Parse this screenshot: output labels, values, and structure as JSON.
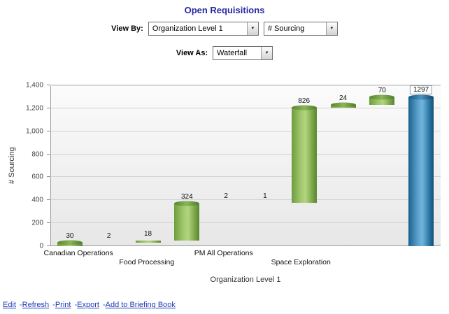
{
  "page": {
    "title": "Open Requisitions"
  },
  "controls": {
    "view_by_label": "View By:",
    "view_by_options": [
      "Organization Level 1"
    ],
    "metric_options": [
      "# Sourcing"
    ],
    "view_as_label": "View As:",
    "view_as_options": [
      "Waterfall"
    ]
  },
  "chart_data": {
    "type": "waterfall",
    "title": "Open Requisitions",
    "ylabel": "# Sourcing",
    "xlabel": "Organization Level 1",
    "ylim": [
      0,
      1400
    ],
    "ytick_values": [
      0,
      200,
      400,
      600,
      800,
      1000,
      1200,
      1400
    ],
    "ytick_labels": [
      "0",
      "200",
      "400",
      "600",
      "800",
      "1,000",
      "1,200",
      "1,400"
    ],
    "grid": "horizontal",
    "categories": [
      "Canadian Operations",
      "Food Processing",
      "PM All Operations",
      "Space Exploration"
    ],
    "bars": [
      {
        "category": "Canadian Operations",
        "label": "30",
        "value": 30,
        "kind": "delta"
      },
      {
        "category": "Canadian Operations",
        "label": "2",
        "value": 2,
        "kind": "delta"
      },
      {
        "category": "Food Processing",
        "label": "18",
        "value": 18,
        "kind": "delta"
      },
      {
        "category": "Food Processing",
        "label": "324",
        "value": 324,
        "kind": "delta"
      },
      {
        "category": "PM All Operations",
        "label": "2",
        "value": 2,
        "kind": "delta"
      },
      {
        "category": "PM All Operations",
        "label": "1",
        "value": 1,
        "kind": "delta"
      },
      {
        "category": "Space Exploration",
        "label": "826",
        "value": 826,
        "kind": "delta"
      },
      {
        "category": "Space Exploration",
        "label": "24",
        "value": 24,
        "kind": "delta"
      },
      {
        "category": "Space Exploration",
        "label": "70",
        "value": 70,
        "kind": "delta"
      },
      {
        "category": "",
        "label": "1297",
        "value": 1297,
        "kind": "total"
      }
    ],
    "colors": {
      "delta": "#7fae4a",
      "total": "#2b7cab"
    }
  },
  "footer": {
    "links": [
      "Edit",
      "Refresh",
      "Print",
      "Export",
      "Add to Briefing Book"
    ],
    "separator": "-"
  }
}
